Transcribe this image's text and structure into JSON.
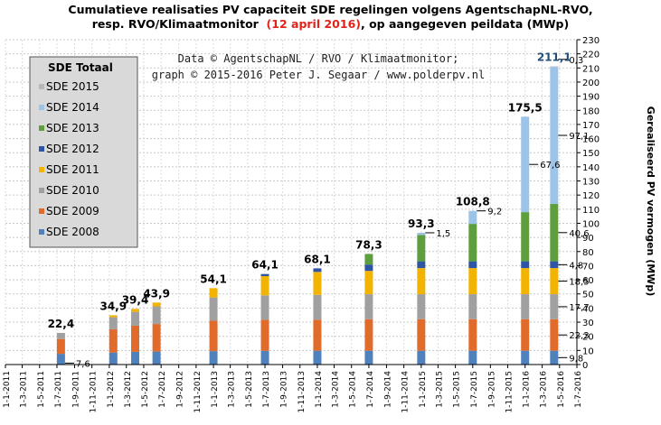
{
  "title_line1": "Cumulatieve realisaties PV capaciteit SDE regelingen volgens AgentschapNL-RVO,",
  "title_line2_pre": "resp. RVO/Klimaatmonitor",
  "title_line2_date": "(12 april 2016)",
  "title_line2_post": ", op aangegeven peildata (MWp)",
  "credit_line1": "Data © AgentschapNL / RVO / Klimaatmonitor;",
  "credit_line2": "graph © 2015-2016 Peter J. Segaar / www.polderpv.nl",
  "legend_title": "SDE Totaal",
  "colors": {
    "SDE 2008": "#4f81bd",
    "SDE 2009": "#e06b2a",
    "SDE 2010": "#a0a0a0",
    "SDE 2011": "#f2b400",
    "SDE 2012": "#2e54a4",
    "SDE 2013": "#5e9e3f",
    "SDE 2014": "#9dc3e6",
    "SDE 2015": "#b8b8b8",
    "highlight": "#e2231a"
  },
  "chart_data": {
    "type": "bar",
    "stacked": true,
    "ylabel": "Gerealiseerd PV vermogen (MWp)",
    "ylim": [
      0,
      230
    ],
    "yticks": [
      0,
      10,
      20,
      30,
      40,
      50,
      60,
      70,
      80,
      90,
      100,
      110,
      120,
      130,
      140,
      150,
      160,
      170,
      180,
      190,
      200,
      210,
      220,
      230
    ],
    "y_axis_side": "right",
    "grid": true,
    "legend_position": "top-left",
    "x_ticks": [
      "1-1-2011",
      "1-3-2011",
      "1-5-2011",
      "1-7-2011",
      "1-9-2011",
      "1-11-2011",
      "1-1-2012",
      "1-3-2012",
      "1-5-2012",
      "1-7-2012",
      "1-9-2012",
      "1-11-2012",
      "1-1-2013",
      "1-3-2013",
      "1-5-2013",
      "1-7-2013",
      "1-9-2013",
      "1-11-2013",
      "1-1-2014",
      "1-3-2014",
      "1-5-2014",
      "1-7-2014",
      "1-9-2014",
      "1-11-2014",
      "1-1-2015",
      "1-3-2015",
      "1-5-2015",
      "1-7-2015",
      "1-9-2015",
      "1-11-2015",
      "1-1-2016",
      "1-3-2016",
      "1-5-2016",
      "1-7-2016"
    ],
    "legend_order": [
      "SDE 2015",
      "SDE 2014",
      "SDE 2013",
      "SDE 2012",
      "SDE 2011",
      "SDE 2010",
      "SDE 2009",
      "SDE 2008"
    ],
    "series_order": [
      "SDE 2008",
      "SDE 2009",
      "SDE 2010",
      "SDE 2011",
      "SDE 2012",
      "SDE 2013",
      "SDE 2014",
      "SDE 2015"
    ],
    "bars": [
      {
        "date": "2011-07-15",
        "total_label": "22,4",
        "segments": [
          7.6,
          10.5,
          4.3,
          0,
          0,
          0,
          0,
          0
        ]
      },
      {
        "date": "2012-01-15",
        "total_label": "34,9",
        "segments": [
          8.5,
          16.5,
          8.5,
          1.4,
          0,
          0,
          0,
          0
        ]
      },
      {
        "date": "2012-04-01",
        "total_label": "39,4",
        "segments": [
          9.0,
          18.5,
          9.8,
          2.1,
          0,
          0,
          0,
          0
        ]
      },
      {
        "date": "2012-06-15",
        "total_label": "43,9",
        "segments": [
          9.2,
          19.5,
          12.5,
          2.7,
          0,
          0,
          0,
          0
        ]
      },
      {
        "date": "2013-01-01",
        "total_label": "54,1",
        "segments": [
          9.5,
          21.5,
          16.5,
          6.6,
          0,
          0,
          0,
          0
        ]
      },
      {
        "date": "2013-07-01",
        "total_label": "64,1",
        "segments": [
          9.7,
          22.0,
          17.3,
          13.6,
          1.5,
          0,
          0,
          0
        ]
      },
      {
        "date": "2014-01-01",
        "total_label": "68,1",
        "segments": [
          9.8,
          22.0,
          17.5,
          16.3,
          2.5,
          0,
          0,
          0
        ]
      },
      {
        "date": "2014-07-01",
        "total_label": "78,3",
        "segments": [
          9.8,
          22.3,
          17.7,
          16.5,
          4.5,
          7.5,
          0,
          0
        ]
      },
      {
        "date": "2015-01-01",
        "total_label": "93,3",
        "segments": [
          9.8,
          22.3,
          17.7,
          18.5,
          4.8,
          18.7,
          1.5,
          0
        ]
      },
      {
        "date": "2015-07-01",
        "total_label": "108,8",
        "segments": [
          9.8,
          22.3,
          17.7,
          18.5,
          4.8,
          26.5,
          9.2,
          0
        ]
      },
      {
        "date": "2016-01-01",
        "total_label": "175,5",
        "segments": [
          9.8,
          22.3,
          17.7,
          18.5,
          4.8,
          34.8,
          67.6,
          0
        ]
      },
      {
        "date": "2016-04-12",
        "total_label": "211,1",
        "segments": [
          9.8,
          22.3,
          17.7,
          18.5,
          4.8,
          40.6,
          97.1,
          0.3
        ],
        "highlight": true
      }
    ],
    "annotations": [
      {
        "text": "7,6",
        "bar": 0,
        "series": "SDE 2008"
      },
      {
        "text": "1,5",
        "bar": 8,
        "series": "SDE 2014"
      },
      {
        "text": "9,2",
        "bar": 9,
        "series": "SDE 2014"
      },
      {
        "text": "67,6",
        "bar": 10,
        "series": "SDE 2014"
      },
      {
        "text": "0,3",
        "bar": 11,
        "series": "SDE 2015"
      },
      {
        "text": "97,1",
        "bar": 11,
        "series": "SDE 2014"
      },
      {
        "text": "40,6",
        "bar": 11,
        "series": "SDE 2013"
      },
      {
        "text": "4,8",
        "bar": 11,
        "series": "SDE 2012"
      },
      {
        "text": "18,5",
        "bar": 11,
        "series": "SDE 2011"
      },
      {
        "text": "17,7",
        "bar": 11,
        "series": "SDE 2010"
      },
      {
        "text": "22,3",
        "bar": 11,
        "series": "SDE 2009"
      },
      {
        "text": "9,8",
        "bar": 11,
        "series": "SDE 2008"
      }
    ]
  }
}
